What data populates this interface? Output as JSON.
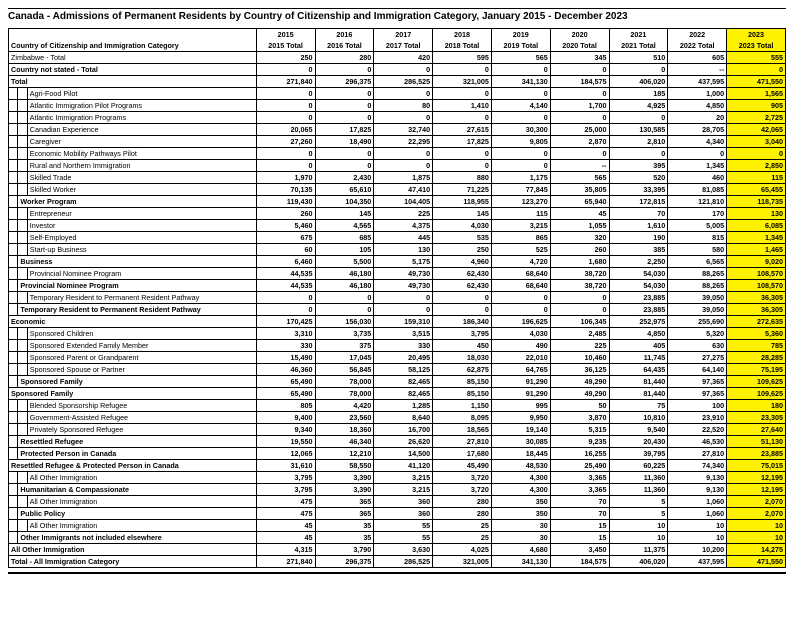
{
  "title": "Canada - Admissions of Permanent Residents by Country of Citizenship and Immigration Category, January 2015 - December 2023",
  "headerLabel": "Country of Citizenship and Immigration Category",
  "years": [
    "2015",
    "2016",
    "2017",
    "2018",
    "2019",
    "2020",
    "2021",
    "2022",
    "2023"
  ],
  "yearTotals": [
    "2015 Total",
    "2016 Total",
    "2017 Total",
    "2018 Total",
    "2019 Total",
    "2020 Total",
    "2021 Total",
    "2022 Total",
    "2023 Total"
  ],
  "highlightColor": "#fff200",
  "rows": [
    {
      "indent": 0,
      "label": "Zimbabwe - Total",
      "vals": [
        "250",
        "280",
        "420",
        "595",
        "565",
        "345",
        "510",
        "605",
        "555"
      ],
      "bold": false
    },
    {
      "indent": 0,
      "label": "Country not stated - Total",
      "vals": [
        "0",
        "0",
        "0",
        "0",
        "0",
        "0",
        "0",
        "--",
        "0"
      ],
      "bold": true
    },
    {
      "indent": 0,
      "label": "Total",
      "vals": [
        "271,840",
        "296,375",
        "286,525",
        "321,005",
        "341,130",
        "184,575",
        "406,020",
        "437,595",
        "471,550"
      ],
      "bold": true
    },
    {
      "indent": 2,
      "label": "Agri-Food Pilot",
      "vals": [
        "0",
        "0",
        "0",
        "0",
        "0",
        "0",
        "185",
        "1,000",
        "1,565"
      ]
    },
    {
      "indent": 2,
      "label": "Atlantic Immigration Pilot Programs",
      "vals": [
        "0",
        "0",
        "80",
        "1,410",
        "4,140",
        "1,700",
        "4,925",
        "4,850",
        "905"
      ]
    },
    {
      "indent": 2,
      "label": "Atlantic Immigration Programs",
      "vals": [
        "0",
        "0",
        "0",
        "0",
        "0",
        "0",
        "0",
        "20",
        "2,725"
      ]
    },
    {
      "indent": 2,
      "label": "Canadian Experience",
      "vals": [
        "20,065",
        "17,825",
        "32,740",
        "27,615",
        "30,300",
        "25,000",
        "130,585",
        "28,705",
        "42,065"
      ]
    },
    {
      "indent": 2,
      "label": "Caregiver",
      "vals": [
        "27,260",
        "18,490",
        "22,295",
        "17,825",
        "9,805",
        "2,870",
        "2,810",
        "4,340",
        "3,040"
      ]
    },
    {
      "indent": 2,
      "label": "Economic Mobility Pathways Pilot",
      "vals": [
        "0",
        "0",
        "0",
        "0",
        "0",
        "0",
        "0",
        "0",
        "0"
      ]
    },
    {
      "indent": 2,
      "label": "Rural and Northern Immigration",
      "vals": [
        "0",
        "0",
        "0",
        "0",
        "0",
        "--",
        "395",
        "1,345",
        "2,850"
      ]
    },
    {
      "indent": 2,
      "label": "Skilled Trade",
      "vals": [
        "1,970",
        "2,430",
        "1,875",
        "880",
        "1,175",
        "565",
        "520",
        "460",
        "115"
      ]
    },
    {
      "indent": 2,
      "label": "Skilled Worker",
      "vals": [
        "70,135",
        "65,610",
        "47,410",
        "71,225",
        "77,845",
        "35,805",
        "33,395",
        "81,085",
        "65,455"
      ]
    },
    {
      "indent": 1,
      "label": "Worker Program",
      "vals": [
        "119,430",
        "104,350",
        "104,405",
        "118,955",
        "123,270",
        "65,940",
        "172,815",
        "121,810",
        "118,735"
      ],
      "bold": true
    },
    {
      "indent": 2,
      "label": "Entrepreneur",
      "vals": [
        "260",
        "145",
        "225",
        "145",
        "115",
        "45",
        "70",
        "170",
        "130"
      ]
    },
    {
      "indent": 2,
      "label": "Investor",
      "vals": [
        "5,460",
        "4,565",
        "4,375",
        "4,030",
        "3,215",
        "1,055",
        "1,610",
        "5,005",
        "6,085"
      ]
    },
    {
      "indent": 2,
      "label": "Self-Employed",
      "vals": [
        "675",
        "685",
        "445",
        "535",
        "865",
        "320",
        "190",
        "815",
        "1,345"
      ]
    },
    {
      "indent": 2,
      "label": "Start-up Business",
      "vals": [
        "60",
        "105",
        "130",
        "250",
        "525",
        "260",
        "385",
        "580",
        "1,465"
      ]
    },
    {
      "indent": 1,
      "label": "Business",
      "vals": [
        "6,460",
        "5,500",
        "5,175",
        "4,960",
        "4,720",
        "1,680",
        "2,250",
        "6,565",
        "9,020"
      ],
      "bold": true
    },
    {
      "indent": 2,
      "label": "Provincial Nominee Program",
      "vals": [
        "44,535",
        "46,180",
        "49,730",
        "62,430",
        "68,640",
        "38,720",
        "54,030",
        "88,265",
        "108,570"
      ]
    },
    {
      "indent": 1,
      "label": "Provincial Nominee Program",
      "vals": [
        "44,535",
        "46,180",
        "49,730",
        "62,430",
        "68,640",
        "38,720",
        "54,030",
        "88,265",
        "108,570"
      ],
      "bold": true
    },
    {
      "indent": 2,
      "label": "Temporary Resident to Permanent Resident Pathway",
      "vals": [
        "0",
        "0",
        "0",
        "0",
        "0",
        "0",
        "23,885",
        "39,050",
        "36,305"
      ]
    },
    {
      "indent": 1,
      "label": "Temporary Resident to Permanent Resident Pathway",
      "vals": [
        "0",
        "0",
        "0",
        "0",
        "0",
        "0",
        "23,885",
        "39,050",
        "36,305"
      ],
      "bold": true
    },
    {
      "indent": 0,
      "label": "Economic",
      "vals": [
        "170,425",
        "156,030",
        "159,310",
        "186,340",
        "196,625",
        "106,345",
        "252,975",
        "255,690",
        "272,635"
      ],
      "bold": true
    },
    {
      "indent": 2,
      "label": "Sponsored Children",
      "vals": [
        "3,310",
        "3,735",
        "3,515",
        "3,795",
        "4,030",
        "2,485",
        "4,850",
        "5,320",
        "5,360"
      ]
    },
    {
      "indent": 2,
      "label": "Sponsored Extended Family Member",
      "vals": [
        "330",
        "375",
        "330",
        "450",
        "490",
        "225",
        "405",
        "630",
        "785"
      ]
    },
    {
      "indent": 2,
      "label": "Sponsored Parent or Grandparent",
      "vals": [
        "15,490",
        "17,045",
        "20,495",
        "18,030",
        "22,010",
        "10,460",
        "11,745",
        "27,275",
        "28,285"
      ]
    },
    {
      "indent": 2,
      "label": "Sponsored Spouse or Partner",
      "vals": [
        "46,360",
        "56,845",
        "58,125",
        "62,875",
        "64,765",
        "36,125",
        "64,435",
        "64,140",
        "75,195"
      ]
    },
    {
      "indent": 1,
      "label": "Sponsored Family",
      "vals": [
        "65,490",
        "78,000",
        "82,465",
        "85,150",
        "91,290",
        "49,290",
        "81,440",
        "97,365",
        "109,625"
      ],
      "bold": true
    },
    {
      "indent": 0,
      "label": "Sponsored Family",
      "vals": [
        "65,490",
        "78,000",
        "82,465",
        "85,150",
        "91,290",
        "49,290",
        "81,440",
        "97,365",
        "109,625"
      ],
      "bold": true
    },
    {
      "indent": 2,
      "label": "Blended Sponsorship Refugee",
      "vals": [
        "805",
        "4,420",
        "1,285",
        "1,150",
        "995",
        "50",
        "75",
        "100",
        "180"
      ]
    },
    {
      "indent": 2,
      "label": "Government-Assisted Refugee",
      "vals": [
        "9,400",
        "23,560",
        "8,640",
        "8,095",
        "9,950",
        "3,870",
        "10,810",
        "23,910",
        "23,305"
      ]
    },
    {
      "indent": 2,
      "label": "Privately Sponsored Refugee",
      "vals": [
        "9,340",
        "18,360",
        "16,700",
        "18,565",
        "19,140",
        "5,315",
        "9,540",
        "22,520",
        "27,640"
      ]
    },
    {
      "indent": 1,
      "label": "Resettled Refugee",
      "vals": [
        "19,550",
        "46,340",
        "26,620",
        "27,810",
        "30,085",
        "9,235",
        "20,430",
        "46,530",
        "51,130"
      ],
      "bold": true
    },
    {
      "indent": 1,
      "label": "Protected Person in Canada",
      "vals": [
        "12,065",
        "12,210",
        "14,500",
        "17,680",
        "18,445",
        "16,255",
        "39,795",
        "27,810",
        "23,885"
      ],
      "bold": true
    },
    {
      "indent": 0,
      "label": "Resettled Refugee & Protected Person in Canada",
      "vals": [
        "31,610",
        "58,550",
        "41,120",
        "45,490",
        "48,530",
        "25,490",
        "60,225",
        "74,340",
        "75,015"
      ],
      "bold": true
    },
    {
      "indent": 2,
      "label": "All Other Immigration",
      "vals": [
        "3,795",
        "3,390",
        "3,215",
        "3,720",
        "4,300",
        "3,365",
        "11,360",
        "9,130",
        "12,195"
      ]
    },
    {
      "indent": 1,
      "label": "Humanitarian & Compassionate",
      "vals": [
        "3,795",
        "3,390",
        "3,215",
        "3,720",
        "4,300",
        "3,365",
        "11,360",
        "9,130",
        "12,195"
      ],
      "bold": true
    },
    {
      "indent": 2,
      "label": "All Other Immigration",
      "vals": [
        "475",
        "365",
        "360",
        "280",
        "350",
        "70",
        "5",
        "1,060",
        "2,070"
      ]
    },
    {
      "indent": 1,
      "label": "Public Policy",
      "vals": [
        "475",
        "365",
        "360",
        "280",
        "350",
        "70",
        "5",
        "1,060",
        "2,070"
      ],
      "bold": true
    },
    {
      "indent": 2,
      "label": "All Other Immigration",
      "vals": [
        "45",
        "35",
        "55",
        "25",
        "30",
        "15",
        "10",
        "10",
        "10"
      ]
    },
    {
      "indent": 1,
      "label": "Other Immigrants not included elsewhere",
      "vals": [
        "45",
        "35",
        "55",
        "25",
        "30",
        "15",
        "10",
        "10",
        "10"
      ],
      "bold": true
    },
    {
      "indent": 0,
      "label": "All Other Immigration",
      "vals": [
        "4,315",
        "3,790",
        "3,630",
        "4,025",
        "4,680",
        "3,450",
        "11,375",
        "10,200",
        "14,275"
      ],
      "bold": true
    },
    {
      "indent": 0,
      "label": "Total - All Immigration Category",
      "vals": [
        "271,840",
        "296,375",
        "286,525",
        "321,005",
        "341,130",
        "184,575",
        "406,020",
        "437,595",
        "471,550"
      ],
      "bold": true
    }
  ]
}
